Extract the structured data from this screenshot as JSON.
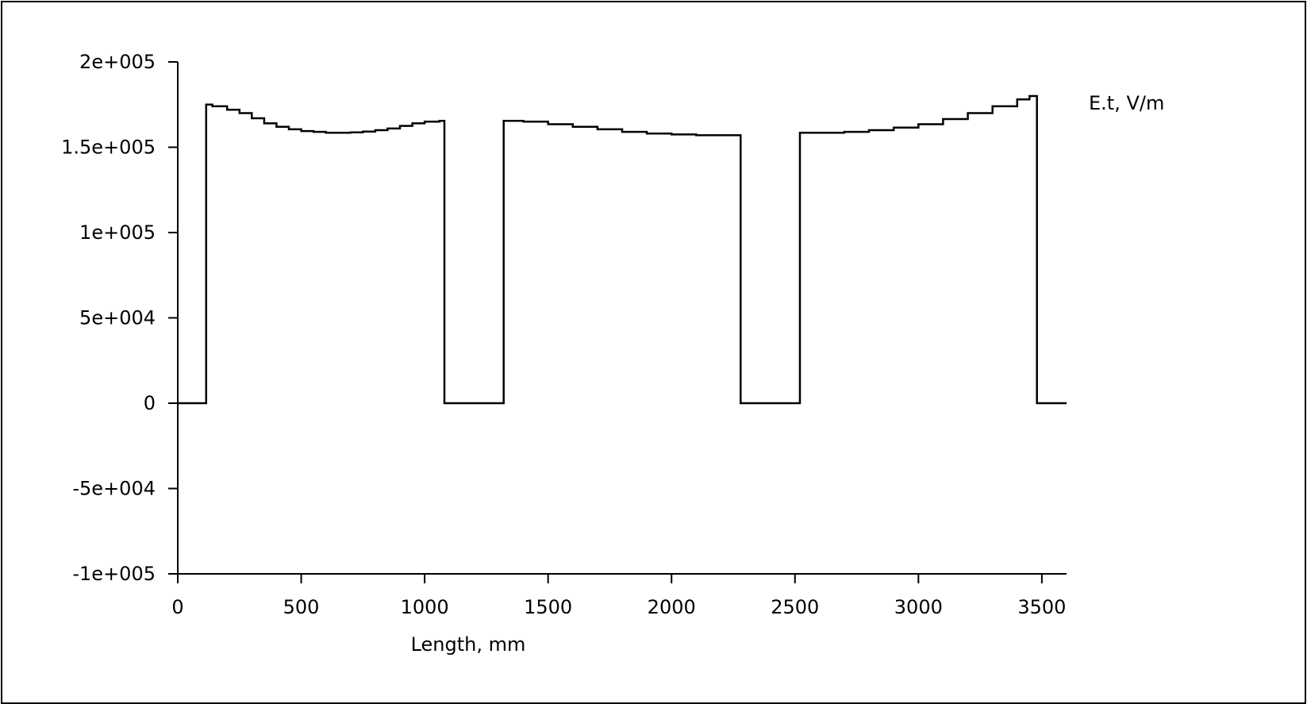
{
  "chart_data": {
    "type": "line",
    "title": "",
    "xlabel": "Length, mm",
    "ylabel": "",
    "series_label": "E.t, V/m",
    "xlim": [
      0,
      3600
    ],
    "ylim": [
      -100000,
      200000
    ],
    "x_ticks": [
      0,
      500,
      1000,
      1500,
      2000,
      2500,
      3000,
      3500
    ],
    "x_tick_labels": [
      "0",
      "500",
      "1000",
      "1500",
      "2000",
      "2500",
      "3000",
      "3500"
    ],
    "y_ticks": [
      200000,
      150000,
      100000,
      50000,
      0,
      -50000,
      -100000
    ],
    "y_tick_labels": [
      "2e+005",
      "1.5e+005",
      "1e+005",
      "5e+004",
      "0",
      "-5e+004",
      "-1e+005"
    ],
    "grid": false,
    "series": [
      {
        "color": "#000000",
        "step": true,
        "points": [
          [
            0,
            0
          ],
          [
            115,
            0
          ],
          [
            115,
            175000
          ],
          [
            140,
            174000
          ],
          [
            200,
            172000
          ],
          [
            250,
            170000
          ],
          [
            300,
            167000
          ],
          [
            350,
            164000
          ],
          [
            400,
            162000
          ],
          [
            450,
            160500
          ],
          [
            500,
            159500
          ],
          [
            550,
            159000
          ],
          [
            600,
            158500
          ],
          [
            650,
            158500
          ],
          [
            700,
            158700
          ],
          [
            750,
            159200
          ],
          [
            800,
            160000
          ],
          [
            850,
            161000
          ],
          [
            900,
            162500
          ],
          [
            950,
            164000
          ],
          [
            1000,
            165000
          ],
          [
            1060,
            165500
          ],
          [
            1070,
            165500
          ],
          [
            1080,
            0
          ],
          [
            1320,
            0
          ],
          [
            1320,
            165500
          ],
          [
            1400,
            165000
          ],
          [
            1500,
            163500
          ],
          [
            1600,
            162000
          ],
          [
            1700,
            160500
          ],
          [
            1800,
            159000
          ],
          [
            1900,
            158000
          ],
          [
            2000,
            157500
          ],
          [
            2100,
            157000
          ],
          [
            2200,
            157000
          ],
          [
            2280,
            157000
          ],
          [
            2280,
            0
          ],
          [
            2520,
            0
          ],
          [
            2520,
            158500
          ],
          [
            2600,
            158500
          ],
          [
            2700,
            159000
          ],
          [
            2800,
            160000
          ],
          [
            2900,
            161500
          ],
          [
            3000,
            163500
          ],
          [
            3100,
            166500
          ],
          [
            3200,
            170000
          ],
          [
            3300,
            174000
          ],
          [
            3400,
            178000
          ],
          [
            3450,
            180000
          ],
          [
            3480,
            180000
          ],
          [
            3480,
            0
          ],
          [
            3600,
            0
          ]
        ]
      }
    ]
  }
}
